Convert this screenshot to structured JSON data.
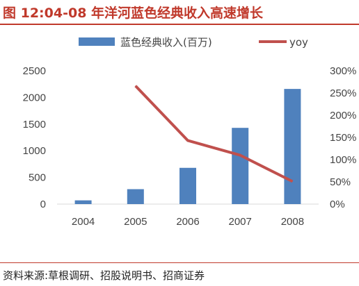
{
  "title": "图 12:04-08 年洋河蓝色经典收入高速增长",
  "source": "资料来源:草根调研、招股说明书、招商证券",
  "chart_data": {
    "type": "bar",
    "categories": [
      "2004",
      "2005",
      "2006",
      "2007",
      "2008"
    ],
    "series": [
      {
        "name": "蓝色经典收入(百万)",
        "type": "bar",
        "axis": "left",
        "color": "#4f81bd",
        "values": [
          70,
          280,
          680,
          1430,
          2160
        ]
      },
      {
        "name": "yoy",
        "type": "line",
        "axis": "right",
        "color": "#c0504d",
        "values": [
          null,
          2.66,
          1.43,
          1.1,
          0.51
        ]
      }
    ],
    "y_left": {
      "min": 0,
      "max": 2500,
      "ticks": [
        "0",
        "500",
        "1000",
        "1500",
        "2000",
        "2500"
      ]
    },
    "y_right": {
      "min": 0,
      "max": 3.0,
      "ticks": [
        "0%",
        "50%",
        "100%",
        "150%",
        "200%",
        "250%",
        "300%"
      ]
    },
    "legend_position": "top",
    "grid": false
  }
}
